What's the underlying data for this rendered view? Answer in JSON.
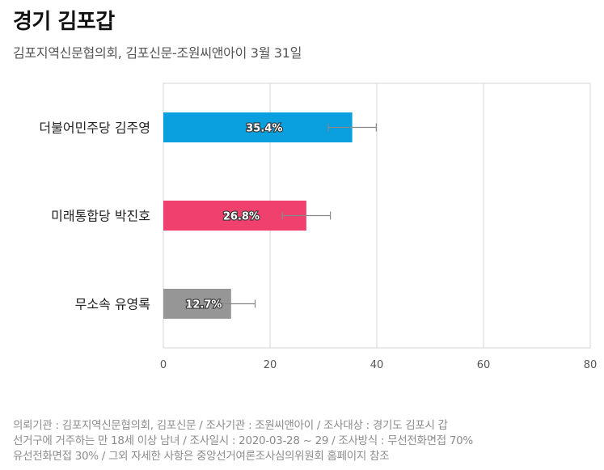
{
  "header": {
    "title": "경기 김포갑",
    "subtitle": "김포지역신문협의회, 김포신문-조원씨앤아이 3월 31일"
  },
  "chart_data": {
    "type": "bar",
    "orientation": "horizontal",
    "categories": [
      "더불어민주당 김주영",
      "미래통합당 박진호",
      "무소속 유영록"
    ],
    "values": [
      35.4,
      26.8,
      12.7
    ],
    "value_labels": [
      "35.4%",
      "26.8%",
      "12.7%"
    ],
    "error_margin": 4.5,
    "colors": [
      "#0aa0e0",
      "#f0416e",
      "#969696"
    ],
    "xlim": [
      0,
      80
    ],
    "xticks": [
      "0",
      "20",
      "40",
      "60",
      "80"
    ],
    "title": "",
    "xlabel": "",
    "ylabel": "",
    "grid": true,
    "legend": "none"
  },
  "footnote": {
    "lines": [
      "의뢰기관 : 김포지역신문협의회, 김포신문 / 조사기관 : 조원씨앤아이 / 조사대상 : 경기도 김포시 갑",
      "선거구에 거주하는 만 18세 이상 남녀 / 조사일시 : 2020-03-28 ~ 29 / 조사방식 : 무선전화면접 70%",
      "유선전화면접 30% / 그외 자세한 사항은 중앙선거여론조사심의위원회 홈페이지 참조"
    ]
  }
}
